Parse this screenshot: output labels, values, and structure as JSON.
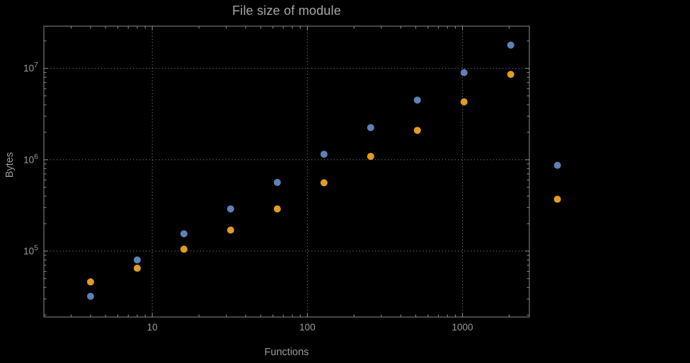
{
  "colors": {
    "background": "#000000",
    "frame": "#8b8b8b",
    "grid": "#767676",
    "label": "#9a9a9a",
    "title": "#a6a6a6"
  },
  "chart_data": {
    "type": "scatter",
    "title": "File size of module",
    "xlabel": "Functions",
    "ylabel": "Bytes",
    "x_scale": "log",
    "y_scale": "log",
    "grid": "dotted lines at decade ticks",
    "legend": "none",
    "xlim": [
      2,
      2700
    ],
    "ylim": [
      19000,
      29000000
    ],
    "x_ticks": [
      {
        "value": 10,
        "label": "10"
      },
      {
        "value": 100,
        "label": "100"
      },
      {
        "value": 1000,
        "label": "1000"
      }
    ],
    "y_ticks": [
      {
        "value": 100000,
        "base": "10",
        "exp": "5"
      },
      {
        "value": 1000000,
        "base": "10",
        "exp": "6"
      },
      {
        "value": 10000000,
        "base": "10",
        "exp": "7"
      }
    ],
    "x": [
      4,
      8,
      16,
      32,
      64,
      128,
      256,
      512,
      1024,
      2048,
      4096
    ],
    "series": [
      {
        "name": "blue-series",
        "color": "#5E81B5",
        "values": [
          32000,
          80000,
          155000,
          290000,
          565000,
          1150000,
          2250000,
          4500000,
          9000000,
          18000000,
          870000
        ]
      },
      {
        "name": "orange-series",
        "color": "#E19C24",
        "values": [
          46000,
          65000,
          105000,
          170000,
          290000,
          560000,
          1090000,
          2100000,
          4300000,
          8600000,
          370000
        ]
      }
    ]
  }
}
